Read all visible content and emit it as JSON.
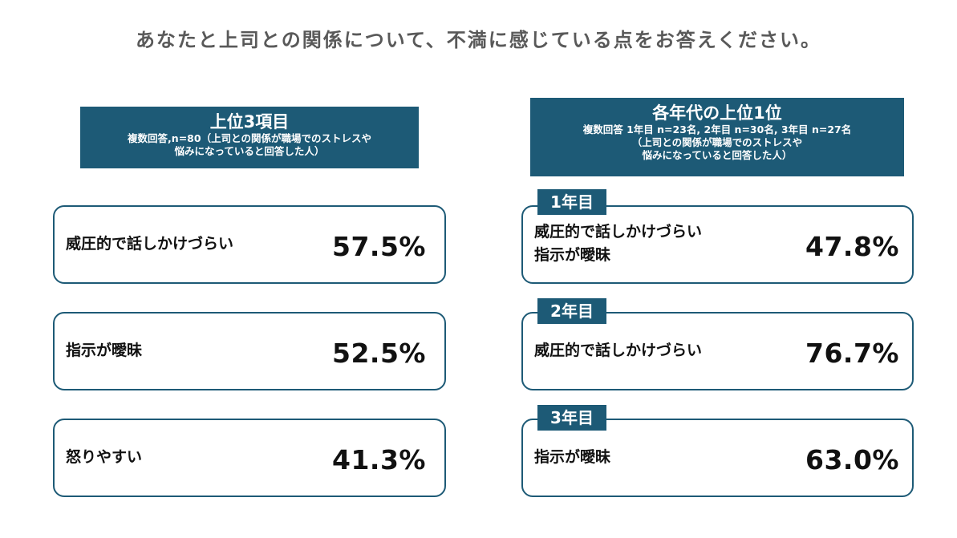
{
  "page_title": "あなたと上司との関係について、不満に感じている点をお答えください。",
  "left_header": {
    "title": "上位3項目",
    "subtitle1": "複数回答,n=80（上司との関係が職場でのストレスや",
    "subtitle2": "悩みになっていると回答した人）"
  },
  "right_header": {
    "title": "各年代の上位1位",
    "subtitle1": "複数回答 1年目 n=23名, 2年目 n=30名, 3年目 n=27名",
    "subtitle2": "（上司との関係が職場でのストレスや",
    "subtitle3": "悩みになっていると回答した人）"
  },
  "colors": {
    "accent": "#1d5a76",
    "title_gray": "#595959",
    "text": "#111111"
  },
  "chart_data": [
    {
      "type": "table",
      "title": "上位3項目",
      "categories": [
        "威圧的で話しかけづらい",
        "指示が曖昧",
        "怒りやすい"
      ],
      "values": [
        57.5,
        52.5,
        41.3
      ],
      "unit": "%",
      "labels": [
        "57.5%",
        "52.5%",
        "41.3%"
      ]
    },
    {
      "type": "table",
      "title": "各年代の上位1位",
      "rows": [
        {
          "year": "1年目",
          "items": [
            "威圧的で話しかけづらい",
            "指示が曖昧"
          ],
          "value": 47.8,
          "label": "47.8%"
        },
        {
          "year": "2年目",
          "items": [
            "威圧的で話しかけづらい"
          ],
          "value": 76.7,
          "label": "76.7%"
        },
        {
          "year": "3年目",
          "items": [
            "指示が曖昧"
          ],
          "value": 63.0,
          "label": "63.0%"
        }
      ]
    }
  ]
}
